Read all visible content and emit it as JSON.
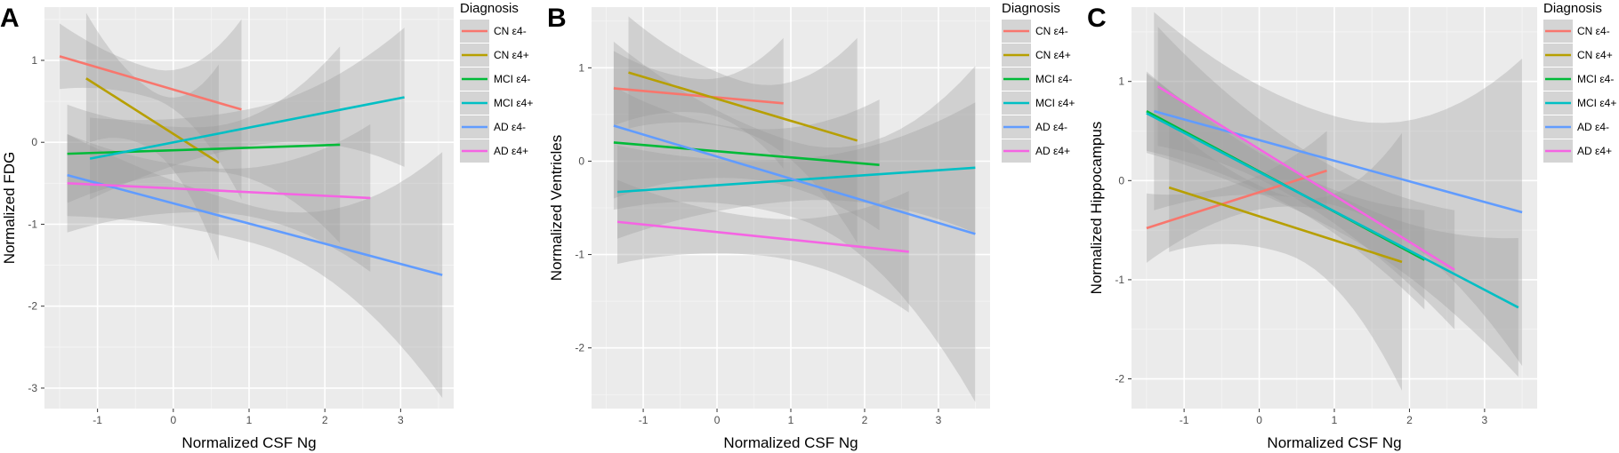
{
  "chart_data": [
    {
      "type": "line",
      "panel": "A",
      "xlabel": "Normalized CSF Ng",
      "ylabel": "Normalized FDG",
      "xlim": [
        -1.7,
        3.7
      ],
      "ylim": [
        -3.25,
        1.65
      ],
      "xticks": [
        -1,
        0,
        1,
        2,
        3
      ],
      "yticks": [
        -3,
        -2,
        -1,
        0,
        1
      ],
      "legend_title": "Diagnosis",
      "series": [
        {
          "name": "CN ε4-",
          "color": "#F8766D",
          "x": [
            -1.5,
            0.9
          ],
          "y": [
            1.05,
            0.4
          ],
          "ci_width": [
            0.4,
            1.1
          ]
        },
        {
          "name": "CN ε4+",
          "color": "#B79F00",
          "x": [
            -1.15,
            0.6
          ],
          "y": [
            0.78,
            -0.25
          ],
          "ci_width": [
            0.8,
            1.2
          ]
        },
        {
          "name": "MCI ε4-",
          "color": "#00BA38",
          "x": [
            -1.4,
            2.2
          ],
          "y": [
            -0.14,
            -0.03
          ],
          "ci_width": [
            0.6,
            1.2
          ]
        },
        {
          "name": "MCI ε4+",
          "color": "#00BFC4",
          "x": [
            -1.1,
            3.05
          ],
          "y": [
            -0.2,
            0.55
          ],
          "ci_width": [
            0.5,
            0.85
          ]
        },
        {
          "name": "AD ε4-",
          "color": "#619CFF",
          "x": [
            -1.4,
            3.55
          ],
          "y": [
            -0.4,
            -1.62
          ],
          "ci_width": [
            0.5,
            1.5
          ]
        },
        {
          "name": "AD ε4+",
          "color": "#F564E3",
          "x": [
            -1.4,
            2.6
          ],
          "y": [
            -0.5,
            -0.68
          ],
          "ci_width": [
            0.6,
            0.9
          ]
        }
      ]
    },
    {
      "type": "line",
      "panel": "B",
      "xlabel": "Normalized CSF Ng",
      "ylabel": "Normalized Ventricles",
      "xlim": [
        -1.7,
        3.7
      ],
      "ylim": [
        -2.65,
        1.65
      ],
      "xticks": [
        -1,
        0,
        1,
        2,
        3
      ],
      "yticks": [
        -2,
        -1,
        0,
        1
      ],
      "legend_title": "Diagnosis",
      "series": [
        {
          "name": "CN ε4-",
          "color": "#F8766D",
          "x": [
            -1.4,
            0.9
          ],
          "y": [
            0.78,
            0.62
          ],
          "ci_width": [
            0.4,
            0.7
          ]
        },
        {
          "name": "CN ε4+",
          "color": "#B79F00",
          "x": [
            -1.2,
            1.9
          ],
          "y": [
            0.95,
            0.22
          ],
          "ci_width": [
            0.6,
            1.1
          ]
        },
        {
          "name": "MCI ε4-",
          "color": "#00BA38",
          "x": [
            -1.4,
            2.2
          ],
          "y": [
            0.2,
            -0.04
          ],
          "ci_width": [
            0.6,
            0.7
          ]
        },
        {
          "name": "MCI ε4+",
          "color": "#00BFC4",
          "x": [
            -1.35,
            3.5
          ],
          "y": [
            -0.33,
            -0.07
          ],
          "ci_width": [
            0.5,
            0.7
          ]
        },
        {
          "name": "AD ε4-",
          "color": "#619CFF",
          "x": [
            -1.4,
            3.5
          ],
          "y": [
            0.38,
            -0.78
          ],
          "ci_width": [
            0.9,
            1.8
          ]
        },
        {
          "name": "AD ε4+",
          "color": "#F564E3",
          "x": [
            -1.35,
            2.6
          ],
          "y": [
            -0.65,
            -0.97
          ],
          "ci_width": [
            0.45,
            0.65
          ]
        }
      ]
    },
    {
      "type": "line",
      "panel": "C",
      "xlabel": "Normalized CSF Ng",
      "ylabel": "Normalized Hippocampus",
      "xlim": [
        -1.7,
        3.7
      ],
      "ylim": [
        -2.3,
        1.75
      ],
      "xticks": [
        -1,
        0,
        1,
        2,
        3
      ],
      "yticks": [
        -2,
        -1,
        0,
        1
      ],
      "legend_title": "Diagnosis",
      "series": [
        {
          "name": "CN ε4-",
          "color": "#F8766D",
          "x": [
            -1.5,
            0.9
          ],
          "y": [
            -0.48,
            0.1
          ],
          "ci_width": [
            0.35,
            0.4
          ]
        },
        {
          "name": "CN ε4+",
          "color": "#B79F00",
          "x": [
            -1.2,
            1.9
          ],
          "y": [
            -0.07,
            -0.82
          ],
          "ci_width": [
            0.65,
            1.3
          ]
        },
        {
          "name": "MCI ε4-",
          "color": "#00BA38",
          "x": [
            -1.5,
            2.2
          ],
          "y": [
            0.7,
            -0.8
          ],
          "ci_width": [
            0.4,
            0.5
          ]
        },
        {
          "name": "MCI ε4+",
          "color": "#00BFC4",
          "x": [
            -1.5,
            3.45
          ],
          "y": [
            0.68,
            -1.28
          ],
          "ci_width": [
            0.4,
            0.7
          ]
        },
        {
          "name": "AD ε4-",
          "color": "#619CFF",
          "x": [
            -1.4,
            3.5
          ],
          "y": [
            0.7,
            -0.32
          ],
          "ci_width": [
            1.0,
            1.55
          ]
        },
        {
          "name": "AD ε4+",
          "color": "#F564E3",
          "x": [
            -1.35,
            2.6
          ],
          "y": [
            0.95,
            -0.9
          ],
          "ci_width": [
            0.6,
            0.6
          ]
        }
      ]
    }
  ]
}
